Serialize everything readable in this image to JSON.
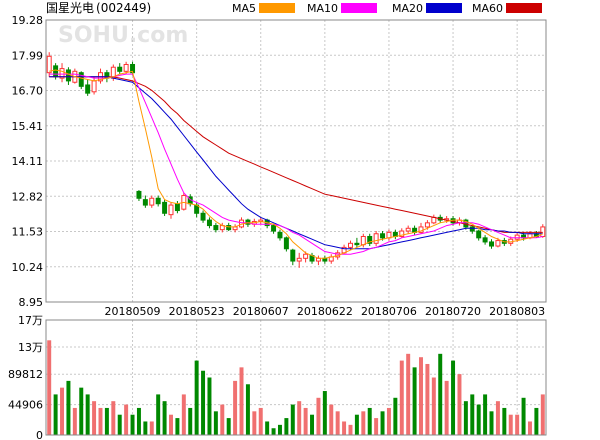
{
  "chart_data": {
    "type": "candlestick",
    "title": "国星光电",
    "code": "(002449)",
    "watermark": "SOHU.com",
    "legend": [
      {
        "name": "MA5",
        "color": "#ff9900"
      },
      {
        "name": "MA10",
        "color": "#ff00ff"
      },
      {
        "name": "MA20",
        "color": "#0000cc"
      },
      {
        "name": "MA60",
        "color": "#cc0000"
      }
    ],
    "price_axis": {
      "ylim": [
        8.95,
        19.28
      ],
      "ticks": [
        "19.28",
        "17.99",
        "16.70",
        "15.41",
        "14.11",
        "12.82",
        "11.53",
        "10.24",
        "8.95"
      ]
    },
    "date_labels": [
      {
        "label": "20180509",
        "index": 13
      },
      {
        "label": "20180523",
        "index": 23
      },
      {
        "label": "20180607",
        "index": 33
      },
      {
        "label": "20180622",
        "index": 43
      },
      {
        "label": "20180706",
        "index": 53
      },
      {
        "label": "20180720",
        "index": 63
      },
      {
        "label": "20180803",
        "index": 73
      }
    ],
    "volume_axis": {
      "ylim": [
        0,
        170000
      ],
      "ticks": [
        "17万",
        "13万",
        "89812",
        "44906",
        "0"
      ]
    },
    "colors": {
      "up": "#ff3333",
      "down": "#008800",
      "up_fill": "#ffffff",
      "grid": "#c8c8c8",
      "volume_up": "#f07070",
      "volume_down": "#008800"
    },
    "candles": [
      [
        17.35,
        17.95,
        17.2,
        18.1
      ],
      [
        17.6,
        17.2,
        17.1,
        17.7
      ],
      [
        17.15,
        17.5,
        17.0,
        17.7
      ],
      [
        17.45,
        17.05,
        16.9,
        17.55
      ],
      [
        17.0,
        17.4,
        16.95,
        17.5
      ],
      [
        17.35,
        16.85,
        16.75,
        17.4
      ],
      [
        16.9,
        16.6,
        16.5,
        17.1
      ],
      [
        16.65,
        17.05,
        16.55,
        17.2
      ],
      [
        17.05,
        17.35,
        16.95,
        17.5
      ],
      [
        17.35,
        17.15,
        17.0,
        17.45
      ],
      [
        17.15,
        17.55,
        17.05,
        17.65
      ],
      [
        17.55,
        17.4,
        17.3,
        17.7
      ],
      [
        17.4,
        17.65,
        17.3,
        17.75
      ],
      [
        17.65,
        17.35,
        17.25,
        17.75
      ],
      [
        13.0,
        12.75,
        12.65,
        13.05
      ],
      [
        12.7,
        12.5,
        12.4,
        12.85
      ],
      [
        12.5,
        12.75,
        12.4,
        12.85
      ],
      [
        12.75,
        12.55,
        12.45,
        12.85
      ],
      [
        12.6,
        12.2,
        12.1,
        12.7
      ],
      [
        12.15,
        12.5,
        12.0,
        12.6
      ],
      [
        12.55,
        12.3,
        12.2,
        12.65
      ],
      [
        12.35,
        12.85,
        12.3,
        12.95
      ],
      [
        12.8,
        12.55,
        12.45,
        12.9
      ],
      [
        12.5,
        12.2,
        12.05,
        12.6
      ],
      [
        12.2,
        11.95,
        11.85,
        12.3
      ],
      [
        11.95,
        11.75,
        11.65,
        12.05
      ],
      [
        11.75,
        11.6,
        11.5,
        11.85
      ],
      [
        11.6,
        11.75,
        11.5,
        11.85
      ],
      [
        11.75,
        11.6,
        11.55,
        11.85
      ],
      [
        11.6,
        11.7,
        11.5,
        11.8
      ],
      [
        11.7,
        11.95,
        11.65,
        12.05
      ],
      [
        11.95,
        11.8,
        11.7,
        12.0
      ],
      [
        11.8,
        11.9,
        11.7,
        12.0
      ],
      [
        11.9,
        11.95,
        11.8,
        12.05
      ],
      [
        11.95,
        11.75,
        11.65,
        12.0
      ],
      [
        11.75,
        11.55,
        11.45,
        11.8
      ],
      [
        11.5,
        11.3,
        11.2,
        11.6
      ],
      [
        11.3,
        10.9,
        10.8,
        11.35
      ],
      [
        10.85,
        10.45,
        10.3,
        10.9
      ],
      [
        10.45,
        10.55,
        10.2,
        10.75
      ],
      [
        10.55,
        10.7,
        10.4,
        10.8
      ],
      [
        10.65,
        10.45,
        10.35,
        10.75
      ],
      [
        10.45,
        10.55,
        10.3,
        10.65
      ],
      [
        10.55,
        10.45,
        10.35,
        10.65
      ],
      [
        10.45,
        10.6,
        10.35,
        10.7
      ],
      [
        10.6,
        10.75,
        10.5,
        10.85
      ],
      [
        10.75,
        10.95,
        10.7,
        11.05
      ],
      [
        10.95,
        11.1,
        10.85,
        11.2
      ],
      [
        11.1,
        11.05,
        10.95,
        11.3
      ],
      [
        11.05,
        11.35,
        10.95,
        11.45
      ],
      [
        11.35,
        11.1,
        11.0,
        11.45
      ],
      [
        11.1,
        11.45,
        11.0,
        11.55
      ],
      [
        11.45,
        11.3,
        11.2,
        11.55
      ],
      [
        11.3,
        11.5,
        11.2,
        11.6
      ],
      [
        11.5,
        11.35,
        11.25,
        11.6
      ],
      [
        11.35,
        11.55,
        11.3,
        11.65
      ],
      [
        11.55,
        11.65,
        11.45,
        11.75
      ],
      [
        11.65,
        11.5,
        11.4,
        11.75
      ],
      [
        11.5,
        11.7,
        11.45,
        11.85
      ],
      [
        11.7,
        11.85,
        11.6,
        11.95
      ],
      [
        11.85,
        12.05,
        11.8,
        12.15
      ],
      [
        12.05,
        11.95,
        11.85,
        12.15
      ],
      [
        11.95,
        12.0,
        11.85,
        12.1
      ],
      [
        12.0,
        11.85,
        11.75,
        12.1
      ],
      [
        11.85,
        11.95,
        11.75,
        12.05
      ],
      [
        11.95,
        11.7,
        11.6,
        12.0
      ],
      [
        11.7,
        11.55,
        11.45,
        11.75
      ],
      [
        11.55,
        11.3,
        11.2,
        11.6
      ],
      [
        11.3,
        11.15,
        11.05,
        11.4
      ],
      [
        11.15,
        11.0,
        10.9,
        11.25
      ],
      [
        11.0,
        11.2,
        10.95,
        11.3
      ],
      [
        11.2,
        11.1,
        11.0,
        11.3
      ],
      [
        11.1,
        11.25,
        11.0,
        11.35
      ],
      [
        11.25,
        11.4,
        11.15,
        11.5
      ],
      [
        11.4,
        11.3,
        11.2,
        11.5
      ],
      [
        11.3,
        11.45,
        11.25,
        11.55
      ],
      [
        11.45,
        11.35,
        11.3,
        11.55
      ],
      [
        11.35,
        11.7,
        11.3,
        11.8
      ]
    ],
    "ma5": [
      17.4,
      17.45,
      17.4,
      17.3,
      17.2,
      17.15,
      17.1,
      17.05,
      17.1,
      17.15,
      17.2,
      17.3,
      17.35,
      17.4,
      16.3,
      15.3,
      14.25,
      13.1,
      12.7,
      12.6,
      12.55,
      12.6,
      12.55,
      12.5,
      12.35,
      12.1,
      11.9,
      11.75,
      11.7,
      11.7,
      11.8,
      11.85,
      11.85,
      11.9,
      11.85,
      11.8,
      11.65,
      11.45,
      11.15,
      10.95,
      10.75,
      10.65,
      10.55,
      10.55,
      10.6,
      10.65,
      10.75,
      10.85,
      10.95,
      11.05,
      11.15,
      11.2,
      11.25,
      11.3,
      11.35,
      11.4,
      11.45,
      11.5,
      11.55,
      11.65,
      11.75,
      11.85,
      11.9,
      11.95,
      11.95,
      11.9,
      11.8,
      11.65,
      11.5,
      11.35,
      11.25,
      11.15,
      11.15,
      11.2,
      11.25,
      11.3,
      11.35,
      11.45
    ],
    "ma10": [
      17.3,
      17.3,
      17.3,
      17.3,
      17.3,
      17.25,
      17.2,
      17.15,
      17.15,
      17.15,
      17.2,
      17.25,
      17.3,
      17.3,
      16.8,
      16.25,
      15.7,
      15.15,
      14.55,
      14.0,
      13.45,
      12.95,
      12.7,
      12.6,
      12.5,
      12.35,
      12.2,
      12.05,
      11.95,
      11.9,
      11.85,
      11.85,
      11.8,
      11.8,
      11.8,
      11.8,
      11.75,
      11.65,
      11.5,
      11.4,
      11.25,
      11.1,
      10.95,
      10.8,
      10.75,
      10.7,
      10.7,
      10.7,
      10.75,
      10.8,
      10.9,
      10.95,
      11.05,
      11.15,
      11.2,
      11.3,
      11.35,
      11.4,
      11.45,
      11.5,
      11.55,
      11.65,
      11.75,
      11.8,
      11.85,
      11.85,
      11.85,
      11.8,
      11.7,
      11.6,
      11.5,
      11.4,
      11.3,
      11.3,
      11.3,
      11.3,
      11.3,
      11.35
    ],
    "ma20": [
      17.2,
      17.2,
      17.2,
      17.2,
      17.2,
      17.2,
      17.2,
      17.2,
      17.2,
      17.2,
      17.15,
      17.1,
      17.05,
      17.0,
      16.8,
      16.6,
      16.4,
      16.15,
      15.9,
      15.65,
      15.35,
      15.05,
      14.75,
      14.45,
      14.15,
      13.85,
      13.55,
      13.3,
      13.05,
      12.8,
      12.55,
      12.35,
      12.2,
      12.05,
      11.95,
      11.85,
      11.75,
      11.65,
      11.55,
      11.45,
      11.35,
      11.25,
      11.15,
      11.05,
      11.0,
      10.95,
      10.9,
      10.9,
      10.9,
      10.9,
      10.9,
      10.95,
      11.0,
      11.05,
      11.1,
      11.15,
      11.2,
      11.25,
      11.3,
      11.35,
      11.4,
      11.45,
      11.5,
      11.55,
      11.6,
      11.65,
      11.65,
      11.65,
      11.6,
      11.6,
      11.55,
      11.55,
      11.5,
      11.5,
      11.45,
      11.45,
      11.45,
      11.45
    ],
    "ma60": [
      17.2,
      17.2,
      17.2,
      17.2,
      17.2,
      17.2,
      17.2,
      17.2,
      17.2,
      17.2,
      17.2,
      17.15,
      17.1,
      17.05,
      16.95,
      16.85,
      16.7,
      16.5,
      16.3,
      16.05,
      15.85,
      15.6,
      15.4,
      15.2,
      15.0,
      14.85,
      14.7,
      14.55,
      14.4,
      14.3,
      14.2,
      14.1,
      14.0,
      13.9,
      13.8,
      13.7,
      13.6,
      13.5,
      13.4,
      13.3,
      13.2,
      13.1,
      13.0,
      12.9,
      12.85,
      12.8,
      12.75,
      12.7,
      12.65,
      12.6,
      12.55,
      12.5,
      12.45,
      12.4,
      12.35,
      12.3,
      12.25,
      12.2,
      12.15,
      12.1,
      12.05,
      12.0,
      11.95,
      11.9,
      11.85,
      11.8,
      11.75,
      11.7,
      11.65,
      11.6,
      11.55,
      11.5,
      11.5,
      11.5,
      11.5,
      11.5,
      11.5,
      11.5
    ],
    "volumes": [
      140000,
      60000,
      70000,
      80000,
      40000,
      70000,
      60000,
      50000,
      40000,
      40000,
      50000,
      30000,
      45000,
      30000,
      40000,
      20000,
      20000,
      60000,
      50000,
      30000,
      25000,
      60000,
      40000,
      110000,
      95000,
      85000,
      35000,
      45000,
      25000,
      80000,
      100000,
      75000,
      35000,
      40000,
      20000,
      10000,
      15000,
      25000,
      45000,
      50000,
      40000,
      30000,
      55000,
      65000,
      45000,
      35000,
      20000,
      15000,
      30000,
      35000,
      40000,
      25000,
      35000,
      40000,
      55000,
      110000,
      120000,
      100000,
      115000,
      105000,
      85000,
      120000,
      80000,
      110000,
      90000,
      50000,
      60000,
      45000,
      60000,
      35000,
      50000,
      40000,
      30000,
      30000,
      55000,
      20000,
      40000,
      60000
    ]
  }
}
